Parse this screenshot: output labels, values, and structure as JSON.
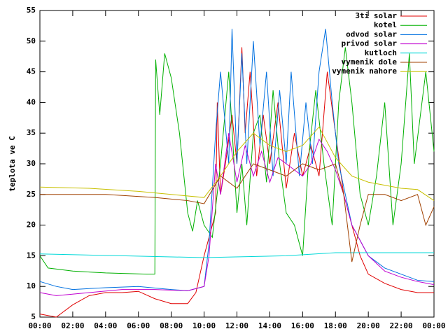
{
  "chart_data": {
    "type": "line",
    "y_label": "teplota ve C",
    "xlim": [
      0,
      24
    ],
    "xticks": [
      {
        "value": 0,
        "label": "00:00"
      },
      {
        "value": 2,
        "label": "02:00"
      },
      {
        "value": 4,
        "label": "04:00"
      },
      {
        "value": 6,
        "label": "06:00"
      },
      {
        "value": 8,
        "label": "08:00"
      },
      {
        "value": 10,
        "label": "10:00"
      },
      {
        "value": 12,
        "label": "12:00"
      },
      {
        "value": 14,
        "label": "14:00"
      },
      {
        "value": 16,
        "label": "16:00"
      },
      {
        "value": 18,
        "label": "18:00"
      },
      {
        "value": 20,
        "label": "20:00"
      },
      {
        "value": 22,
        "label": "22:00"
      },
      {
        "value": 24,
        "label": "00:00"
      }
    ],
    "ylim": [
      5,
      55
    ],
    "yticks": [
      5,
      10,
      15,
      20,
      25,
      30,
      35,
      40,
      45,
      50,
      55
    ],
    "legend": "top-right",
    "series": [
      {
        "name": "3ti solar",
        "color": "#e00000",
        "x": [
          0,
          1,
          2,
          3,
          4,
          5,
          6,
          7,
          8,
          9,
          9.5,
          10,
          10.5,
          10.7,
          10.8,
          11,
          11.3,
          11.7,
          12,
          12.3,
          12.5,
          12.8,
          13.2,
          13.6,
          14,
          14.5,
          15,
          15.5,
          16,
          16.5,
          17,
          17.5,
          18,
          18.5,
          19,
          19.5,
          20,
          21,
          22,
          23,
          24
        ],
        "values": [
          5.5,
          5,
          7,
          8.5,
          9,
          9,
          9.2,
          8,
          7.2,
          7.2,
          9,
          15,
          20,
          22,
          40,
          25,
          30,
          38,
          30,
          49,
          35,
          45,
          28,
          38,
          30,
          40,
          26,
          35,
          28,
          33,
          28,
          45,
          35,
          25,
          20,
          15,
          12,
          10.5,
          9.5,
          9,
          9
        ]
      },
      {
        "name": "kotel",
        "color": "#00b000",
        "x": [
          0,
          0.5,
          2,
          4,
          6.5,
          7,
          7.05,
          7.3,
          7.6,
          8,
          8.5,
          9,
          9.3,
          9.6,
          10,
          10.5,
          11,
          11.5,
          12,
          12.3,
          12.6,
          13,
          13.4,
          13.8,
          14.2,
          14.6,
          15,
          15.5,
          16,
          16.4,
          16.8,
          17.3,
          17.8,
          18.2,
          18.6,
          19,
          19.5,
          20,
          20.5,
          21,
          21.5,
          22,
          22.5,
          22.8,
          23.5,
          24
        ],
        "values": [
          15,
          13,
          12.5,
          12.2,
          12,
          12,
          47,
          38,
          48,
          44,
          35,
          22,
          19,
          24,
          20,
          18,
          30,
          45,
          22,
          30,
          20,
          35,
          38,
          27,
          42,
          30,
          22,
          20,
          15,
          32,
          42,
          30,
          20,
          40,
          49,
          40,
          25,
          20,
          28,
          40,
          20,
          30,
          48,
          30,
          45,
          32
        ]
      },
      {
        "name": "odvod solar",
        "color": "#0070e0",
        "x": [
          0,
          1,
          2,
          4,
          6,
          8,
          9,
          10,
          10.3,
          10.7,
          11,
          11.5,
          11.7,
          12,
          12.3,
          12.6,
          13,
          13.4,
          13.8,
          14.2,
          14.6,
          15,
          15.3,
          15.8,
          16.2,
          16.6,
          17,
          17.4,
          17.8,
          18.2,
          18.6,
          19,
          20,
          21,
          22,
          23,
          24
        ],
        "values": [
          10.8,
          10,
          9.5,
          9.8,
          10,
          9.5,
          9.3,
          10,
          17,
          35,
          45,
          30,
          52,
          30,
          48,
          30,
          50,
          33,
          45,
          28,
          42,
          30,
          45,
          28,
          40,
          30,
          45,
          52,
          40,
          30,
          25,
          20,
          15,
          13,
          12,
          11,
          10.8
        ]
      },
      {
        "name": "privod solar",
        "color": "#c000d0",
        "x": [
          0,
          1,
          3,
          5,
          7,
          9,
          10,
          10.3,
          10.7,
          11,
          11.5,
          12,
          12.5,
          13,
          13.5,
          14,
          14.5,
          15,
          16,
          16.5,
          17,
          17.5,
          18,
          18.5,
          19,
          20,
          21,
          22,
          23,
          24
        ],
        "values": [
          9,
          8.5,
          9,
          9.5,
          9.5,
          9.3,
          10,
          15,
          30,
          25,
          35,
          27,
          33,
          28,
          32,
          27,
          31,
          30,
          28,
          30,
          34,
          32,
          29,
          25,
          20,
          15,
          12.5,
          11.5,
          10.8,
          10.3
        ]
      },
      {
        "name": "kutloch",
        "color": "#00d8d8",
        "x": [
          0,
          5,
          10,
          15,
          18,
          24
        ],
        "values": [
          15.3,
          15,
          14.7,
          15,
          15.5,
          15.5
        ]
      },
      {
        "name": "vymenik dole",
        "color": "#a04000",
        "x": [
          0,
          4,
          7,
          9,
          10,
          11,
          12,
          13,
          14,
          15,
          16,
          17,
          18,
          18.5,
          19,
          19.5,
          20,
          21,
          22,
          23,
          23.5,
          24
        ],
        "values": [
          25,
          25,
          24.5,
          24,
          23.5,
          28,
          26,
          30,
          29,
          28,
          30,
          29,
          30,
          25,
          14,
          20,
          25,
          25,
          24,
          25,
          20,
          23
        ]
      },
      {
        "name": "vymenik nahore",
        "color": "#c8c000",
        "x": [
          0,
          3,
          6,
          8,
          10,
          11,
          12,
          13,
          14,
          15,
          16,
          17,
          18,
          19,
          20,
          21,
          22,
          23,
          24
        ],
        "values": [
          26.2,
          26,
          25.5,
          25,
          24.5,
          28,
          32,
          35,
          33,
          32,
          33,
          36,
          31,
          28,
          27,
          26.5,
          26,
          25.8,
          24
        ]
      }
    ]
  }
}
